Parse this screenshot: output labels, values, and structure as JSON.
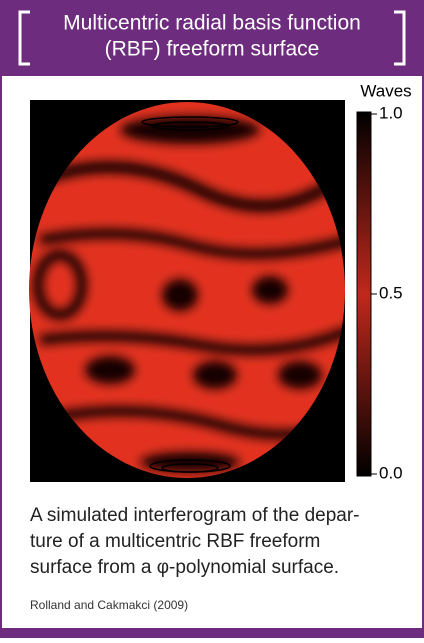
{
  "header": {
    "title_lines": [
      "Multicentric radial basis function",
      "(RBF) freeform surface"
    ]
  },
  "colorbar": {
    "label": "Waves",
    "ticks": [
      {
        "value": 1.0,
        "label": "1.0"
      },
      {
        "value": 0.5,
        "label": "0.5"
      },
      {
        "value": 0.0,
        "label": "0.0"
      }
    ]
  },
  "caption": {
    "lines": [
      "A simulated interferogram of the depar-",
      "ture of a multicentric RBF freeform",
      "surface from a φ-polynomial surface."
    ]
  },
  "credit": "Rolland and Cakmakci (2009)"
}
